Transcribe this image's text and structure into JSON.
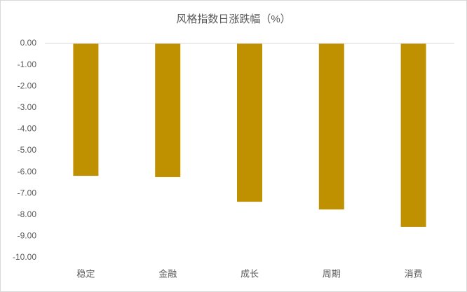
{
  "chart_data": {
    "type": "bar",
    "title": "风格指数日涨跌幅（%）",
    "categories": [
      "稳定",
      "金融",
      "成长",
      "周期",
      "消费"
    ],
    "values": [
      -6.18,
      -6.24,
      -7.39,
      -7.75,
      -8.56
    ],
    "color": "#bf9000",
    "ylim": [
      -10,
      0
    ],
    "yticks": [
      {
        "value": 0,
        "label": "0.00"
      },
      {
        "value": -1,
        "label": "-1.00"
      },
      {
        "value": -2,
        "label": "-2.00"
      },
      {
        "value": -3,
        "label": "-3.00"
      },
      {
        "value": -4,
        "label": "-4.00"
      },
      {
        "value": -5,
        "label": "-5.00"
      },
      {
        "value": -6,
        "label": "-6.00"
      },
      {
        "value": -7,
        "label": "-7.00"
      },
      {
        "value": -8,
        "label": "-8.00"
      },
      {
        "value": -9,
        "label": "-9.00"
      },
      {
        "value": -10,
        "label": "-10.00"
      }
    ],
    "grid": false
  }
}
